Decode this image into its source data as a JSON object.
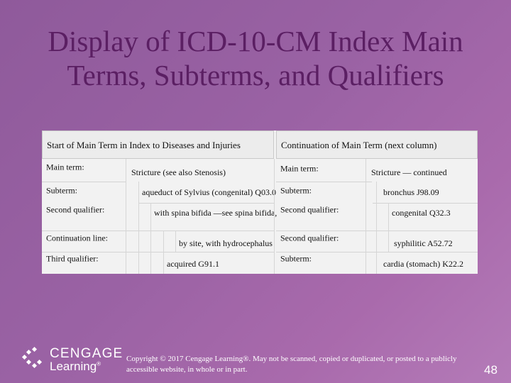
{
  "slide": {
    "title_line1": "Display of ICD-10-CM Index Main",
    "title_line2": "Terms, Subterms, and Qualifiers",
    "page_number": "48"
  },
  "table": {
    "left_header": "Start of Main Term in Index to Diseases and Injuries",
    "right_header": "Continuation of Main Term (next column)",
    "left_rows": [
      {
        "label": "Main term:",
        "text": "Stricture (see also Stenosis)"
      },
      {
        "label": "Subterm:",
        "text": "aqueduct of Sylvius (congenital) Q03.0"
      },
      {
        "label": "Second qualifier:",
        "text": "with spina bifida —see spina bifida,"
      },
      {
        "label": "Continuation line:",
        "text": "by site, with hydrocephalus"
      },
      {
        "label": "Third qualifier:",
        "text": "acquired G91.1"
      }
    ],
    "right_rows": [
      {
        "label": "Main term:",
        "text": "Stricture — continued"
      },
      {
        "label": "Subterm:",
        "text": "bronchus J98.09"
      },
      {
        "label": "Second qualifier:",
        "text": "congenital Q32.3"
      },
      {
        "label": "Second qualifier:",
        "text": "syphilitic A52.72"
      },
      {
        "label": "Subterm:",
        "text": "cardia (stomach) K22.2"
      }
    ]
  },
  "footer": {
    "brand_top": "CENGAGE",
    "brand_bottom": "Learning",
    "brand_mark": "®",
    "copyright": "Copyright © 2017 Cengage Learning®. May not be scanned, copied or duplicated, or posted to a publicly accessible website, in whole or in part."
  }
}
